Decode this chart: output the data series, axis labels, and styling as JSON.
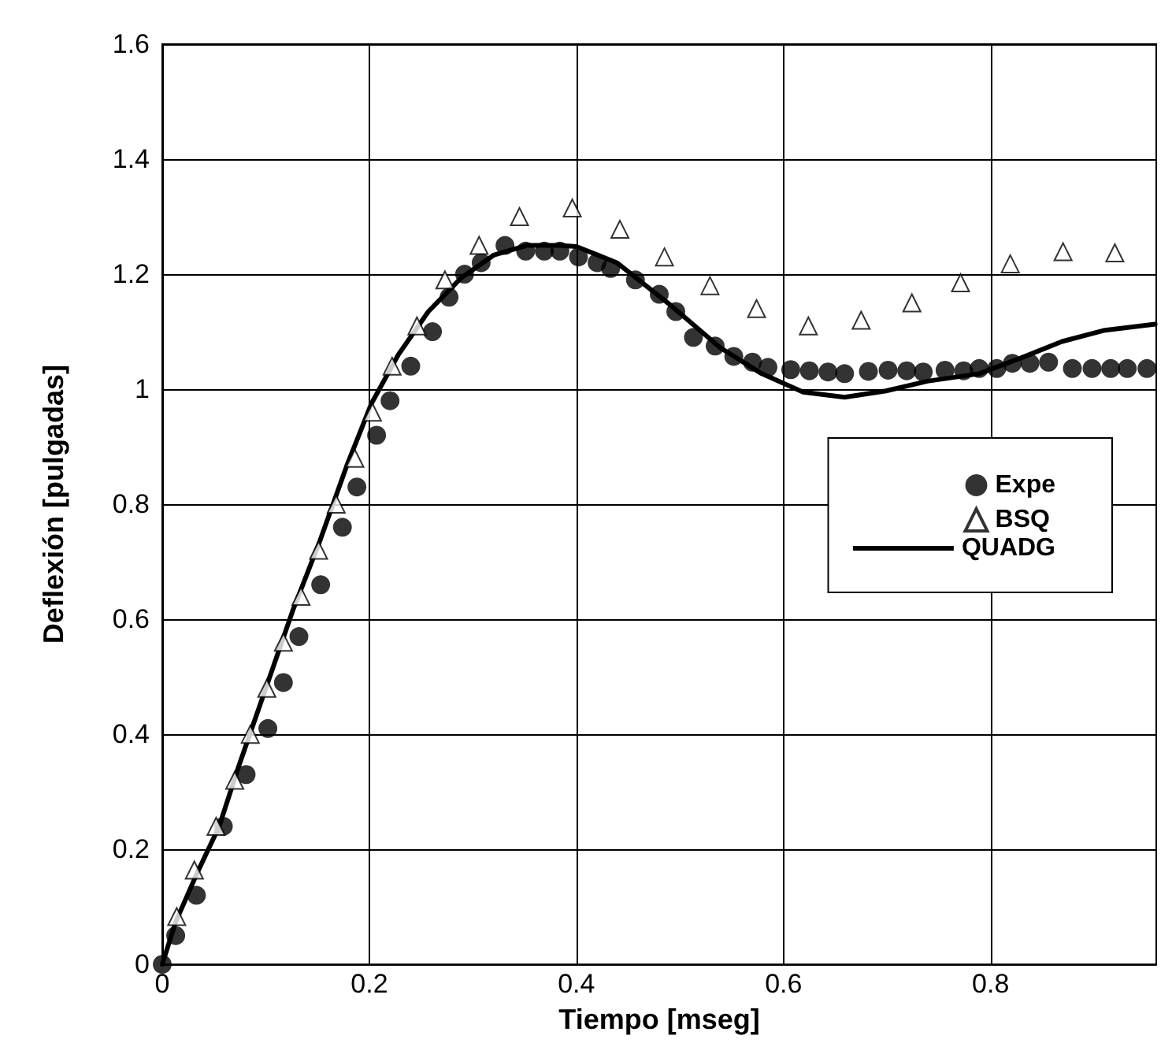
{
  "chart_data": {
    "type": "scatter",
    "xlabel": "Tiempo [mseg]",
    "ylabel": "Deflexión [pulgadas]",
    "xlim": [
      0,
      0.96
    ],
    "xticks": [
      0,
      0.2,
      0.4,
      0.6,
      0.8
    ],
    "ylim": [
      0,
      1.6
    ],
    "yticks": [
      0,
      0.2,
      0.4,
      0.6,
      0.8,
      1,
      1.2,
      1.4,
      1.6
    ],
    "grid": true,
    "legend": "right",
    "series": [
      {
        "name": "Expe",
        "marker": "circle",
        "color": "#000000",
        "x": [
          0,
          0.013,
          0.033,
          0.059,
          0.081,
          0.102,
          0.117,
          0.132,
          0.153,
          0.174,
          0.188,
          0.207,
          0.22,
          0.24,
          0.261,
          0.277,
          0.292,
          0.308,
          0.331,
          0.351,
          0.369,
          0.384,
          0.402,
          0.42,
          0.433,
          0.457,
          0.48,
          0.496,
          0.513,
          0.534,
          0.552,
          0.57,
          0.585,
          0.607,
          0.625,
          0.643,
          0.659,
          0.682,
          0.701,
          0.719,
          0.735,
          0.756,
          0.774,
          0.789,
          0.806,
          0.821,
          0.838,
          0.856,
          0.879,
          0.898,
          0.916,
          0.932,
          0.951
        ],
        "values": [
          0,
          0.05,
          0.12,
          0.24,
          0.33,
          0.41,
          0.49,
          0.57,
          0.66,
          0.76,
          0.83,
          0.92,
          0.98,
          1.04,
          1.1,
          1.16,
          1.2,
          1.22,
          1.25,
          1.24,
          1.24,
          1.24,
          1.23,
          1.22,
          1.21,
          1.19,
          1.165,
          1.135,
          1.09,
          1.075,
          1.057,
          1.047,
          1.038,
          1.034,
          1.032,
          1.03,
          1.027,
          1.031,
          1.033,
          1.032,
          1.03,
          1.033,
          1.032,
          1.036,
          1.036,
          1.045,
          1.045,
          1.047,
          1.036,
          1.036,
          1.036,
          1.036,
          1.036
        ]
      },
      {
        "name": "BSQ",
        "marker": "triangle",
        "color": "#000000",
        "x": [
          0.014,
          0.031,
          0.052,
          0.07,
          0.085,
          0.101,
          0.117,
          0.134,
          0.151,
          0.168,
          0.186,
          0.203,
          0.222,
          0.246,
          0.273,
          0.306,
          0.345,
          0.396,
          0.442,
          0.485,
          0.529,
          0.574,
          0.624,
          0.675,
          0.724,
          0.771,
          0.819,
          0.87,
          0.92
        ],
        "values": [
          0.083,
          0.164,
          0.24,
          0.32,
          0.4,
          0.48,
          0.56,
          0.64,
          0.72,
          0.8,
          0.88,
          0.96,
          1.04,
          1.11,
          1.19,
          1.25,
          1.3,
          1.315,
          1.278,
          1.23,
          1.18,
          1.14,
          1.11,
          1.12,
          1.15,
          1.185,
          1.218,
          1.239,
          1.237
        ]
      },
      {
        "name": "QUADG",
        "type": "line",
        "marker": "none",
        "line_style": "solid",
        "color": "#000000",
        "x": [
          0,
          0.013,
          0.034,
          0.055,
          0.073,
          0.1,
          0.126,
          0.152,
          0.178,
          0.202,
          0.228,
          0.257,
          0.289,
          0.32,
          0.352,
          0.383,
          0.4,
          0.439,
          0.489,
          0.539,
          0.579,
          0.619,
          0.659,
          0.699,
          0.739,
          0.789,
          0.829,
          0.869,
          0.909,
          0.959
        ],
        "values": [
          0,
          0.074,
          0.16,
          0.24,
          0.34,
          0.48,
          0.615,
          0.735,
          0.866,
          0.975,
          1.06,
          1.135,
          1.194,
          1.233,
          1.25,
          1.25,
          1.248,
          1.22,
          1.149,
          1.072,
          1.027,
          0.995,
          0.986,
          0.997,
          1.014,
          1.027,
          1.054,
          1.083,
          1.102,
          1.113
        ]
      }
    ]
  }
}
